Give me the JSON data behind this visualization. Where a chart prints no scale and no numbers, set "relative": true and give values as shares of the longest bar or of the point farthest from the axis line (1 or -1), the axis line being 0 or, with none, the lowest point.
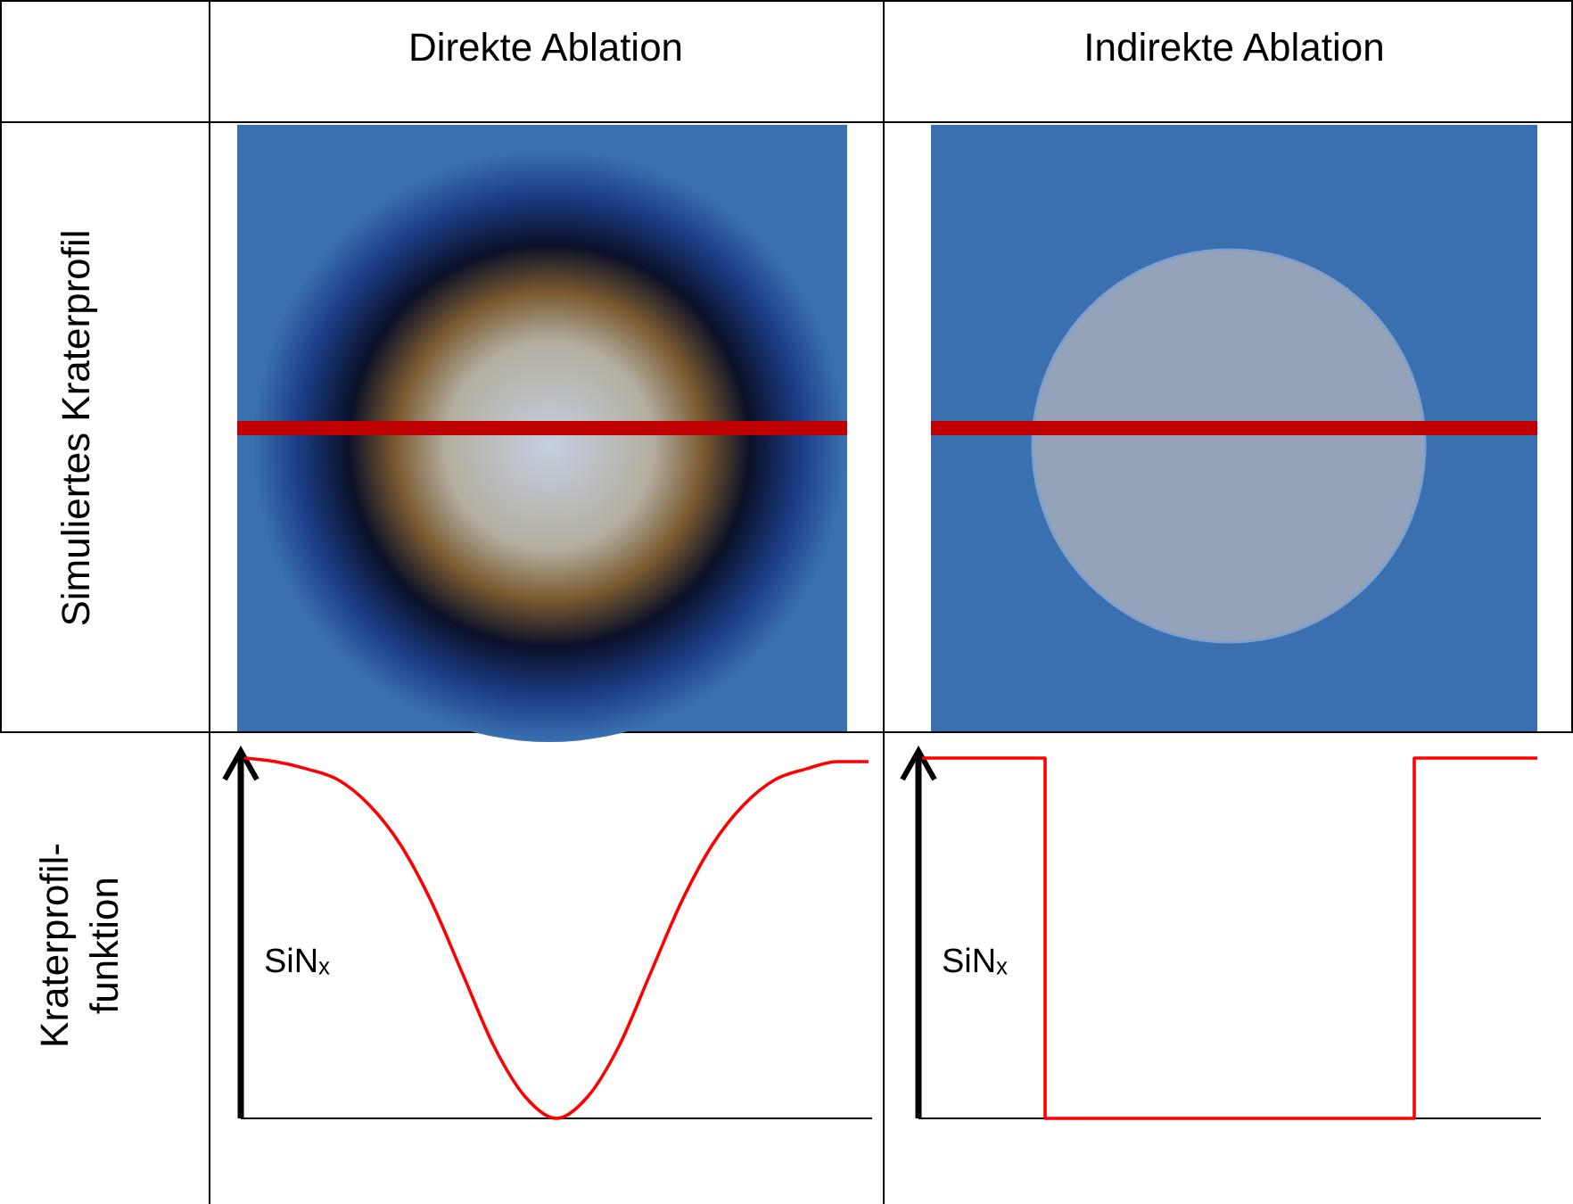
{
  "chart_data": [
    {
      "type": "line",
      "title": "Direkte Ablation",
      "ylabel": "SiNₓ",
      "relative": true,
      "color": "#ff0000",
      "categories": [
        null,
        null,
        null,
        null,
        null,
        null,
        null,
        null,
        null,
        null,
        null,
        null,
        null,
        null,
        null,
        null,
        null,
        null,
        null,
        null,
        null
      ],
      "values": [
        1.0,
        0.99,
        0.97,
        0.94,
        0.87,
        0.76,
        0.6,
        0.4,
        0.2,
        0.06,
        0,
        0.06,
        0.2,
        0.4,
        0.6,
        0.76,
        0.87,
        0.94,
        0.97,
        0.99,
        0.99
      ],
      "annotations": [
        "Simuliertes Kraterprofil",
        "Kraterprofil-funktion"
      ]
    },
    {
      "type": "step",
      "title": "Indirekte Ablation",
      "ylabel": "SiNₓ",
      "relative": true,
      "color": "#ff0000",
      "categories": [
        null,
        null,
        null,
        null,
        null,
        null,
        null,
        null,
        null,
        null,
        null
      ],
      "values": [
        1,
        1,
        0,
        0,
        0,
        0,
        0,
        0,
        1,
        1,
        1
      ]
    }
  ]
}
